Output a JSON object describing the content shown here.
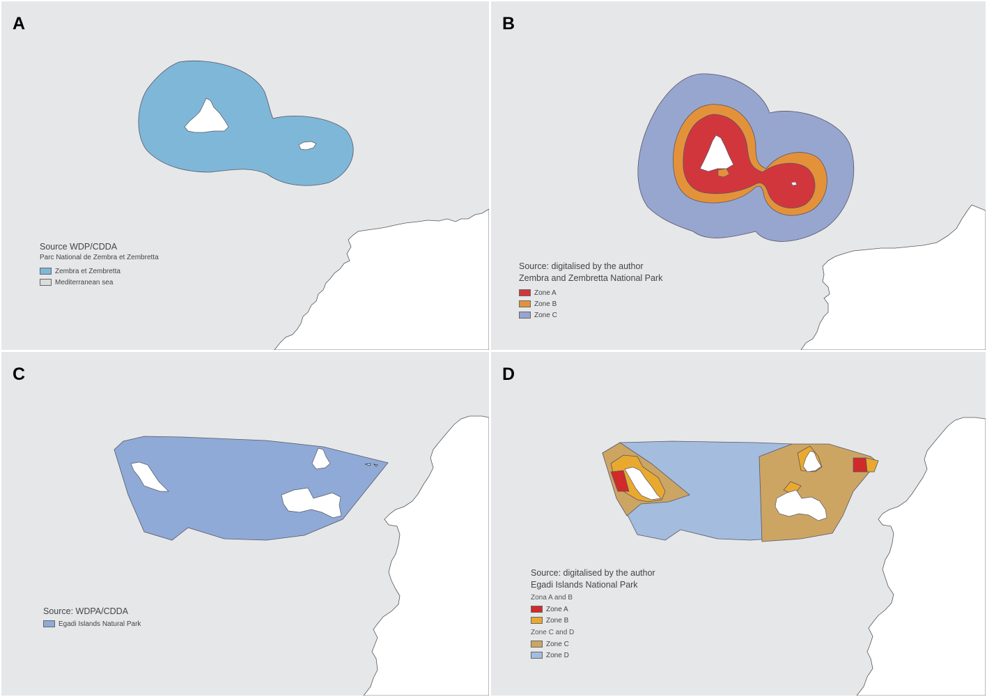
{
  "panels": {
    "A": {
      "label": "A",
      "source": "Source WDP/CDDA",
      "title": "Parc National de Zembra et Zembretta",
      "items": [
        {
          "label": "Zembra et Zembretta",
          "color": "#7fb7d8"
        },
        {
          "label": "Mediterranean sea",
          "color": "#dcdcdc"
        }
      ]
    },
    "B": {
      "label": "B",
      "source": "Source: digitalised by the author",
      "title": "Zembra and Zembretta National Park",
      "items": [
        {
          "label": "Zone A",
          "color": "#d2363d"
        },
        {
          "label": "Zone B",
          "color": "#e4923a"
        },
        {
          "label": "Zone C",
          "color": "#97a6cf"
        }
      ]
    },
    "C": {
      "label": "C",
      "source": "Source: WDPA/CDDA",
      "items": [
        {
          "label": "Egadi Islands Natural Park",
          "color": "#8faad6"
        }
      ]
    },
    "D": {
      "label": "D",
      "source": "Source: digitalised by the author",
      "title": "Egadi Islands National Park",
      "groups": [
        {
          "label": "Zona A and B",
          "items": [
            {
              "label": "Zone A",
              "color": "#d12a2a"
            },
            {
              "label": "Zone B",
              "color": "#e9a92f"
            }
          ]
        },
        {
          "label": "Zone C and D",
          "items": [
            {
              "label": "Zone C",
              "color": "#cda563"
            },
            {
              "label": "Zone D",
              "color": "#a4bcdd"
            }
          ]
        }
      ]
    }
  }
}
